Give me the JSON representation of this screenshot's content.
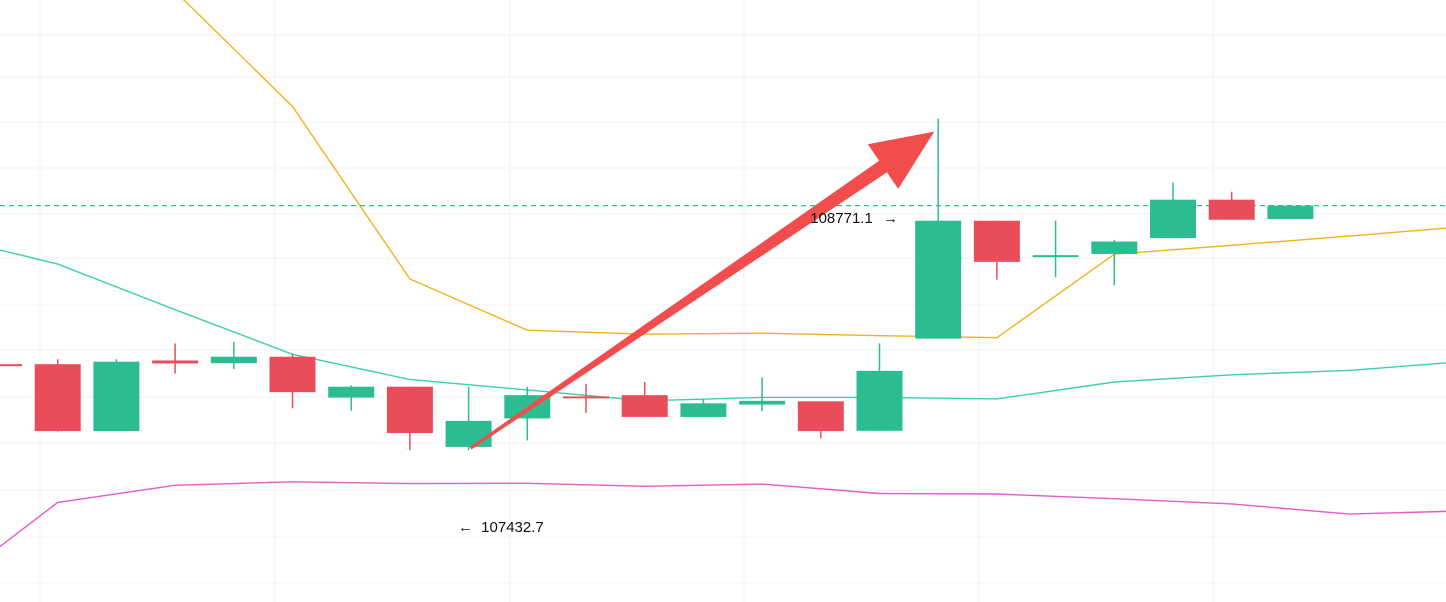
{
  "chart_data": {
    "type": "candlestick",
    "ylim": [
      106820,
      109250
    ],
    "grid": true,
    "colors": {
      "up": "#2bbd91",
      "down": "#ea4d5a",
      "upper_band": "#f2b21d",
      "middle_band": "#3ed0ad",
      "lower_band": "#e45bcb",
      "current_price_line": "#2bbd91",
      "arrow": "#f24d4d",
      "grid": "#f1f3f5"
    },
    "candles": [
      {
        "open": 107780,
        "high": 107800,
        "low": 107775,
        "close": 107778
      },
      {
        "open": 107780,
        "high": 107800,
        "low": 107508,
        "close": 107510
      },
      {
        "open": 107510,
        "high": 107800,
        "low": 107510,
        "close": 107790
      },
      {
        "open": 107795,
        "high": 107864,
        "low": 107742,
        "close": 107783
      },
      {
        "open": 107784,
        "high": 107870,
        "low": 107760,
        "close": 107810
      },
      {
        "open": 107810,
        "high": 107823,
        "low": 107602,
        "close": 107667
      },
      {
        "open": 107645,
        "high": 107695,
        "low": 107592,
        "close": 107689
      },
      {
        "open": 107689,
        "high": 107689,
        "low": 107433,
        "close": 107502
      },
      {
        "open": 107446,
        "high": 107689,
        "low": 107432.7,
        "close": 107551
      },
      {
        "open": 107561,
        "high": 107689,
        "low": 107472,
        "close": 107655
      },
      {
        "open": 107650,
        "high": 107700,
        "low": 107584,
        "close": 107646
      },
      {
        "open": 107655,
        "high": 107708,
        "low": 107577,
        "close": 107567
      },
      {
        "open": 107567,
        "high": 107639,
        "low": 107567,
        "close": 107622
      },
      {
        "open": 107617,
        "high": 107726,
        "low": 107591,
        "close": 107632
      },
      {
        "open": 107630,
        "high": 107630,
        "low": 107480,
        "close": 107510
      },
      {
        "open": 107511,
        "high": 107864,
        "low": 107511,
        "close": 107753
      },
      {
        "open": 107883,
        "high": 108771.1,
        "low": 107883,
        "close": 108359
      },
      {
        "open": 108359,
        "high": 108359,
        "low": 108121,
        "close": 108193
      },
      {
        "open": 108220,
        "high": 108359,
        "low": 108131,
        "close": 108220
      },
      {
        "open": 108225,
        "high": 108282,
        "low": 108099,
        "close": 108275
      },
      {
        "open": 108289,
        "high": 108513,
        "low": 108289,
        "close": 108444
      },
      {
        "open": 108444,
        "high": 108476,
        "low": 108363,
        "close": 108363
      },
      {
        "open": 108366,
        "high": 108417,
        "low": 108366,
        "close": 108420
      }
    ],
    "bollinger": {
      "upper": [
        110190,
        109740,
        109285,
        108820,
        108124,
        107917,
        107901,
        107905,
        107895,
        107887,
        108224,
        108260,
        108297,
        108336,
        108390
      ],
      "middle": [
        108300,
        108184,
        108000,
        107820,
        107718,
        107676,
        107632,
        107646,
        107646,
        107640,
        107708,
        107737,
        107755,
        107791,
        107821
      ],
      "lower": [
        106860,
        107222,
        107291,
        107305,
        107298,
        107299,
        107287,
        107296,
        107258,
        107256,
        107237,
        107216,
        107175,
        107188,
        107178
      ]
    },
    "current_price": 108420,
    "annotations": [
      {
        "label": "108771.1",
        "arrow": "→"
      },
      {
        "label": "107432.7",
        "arrow": "←"
      }
    ]
  }
}
